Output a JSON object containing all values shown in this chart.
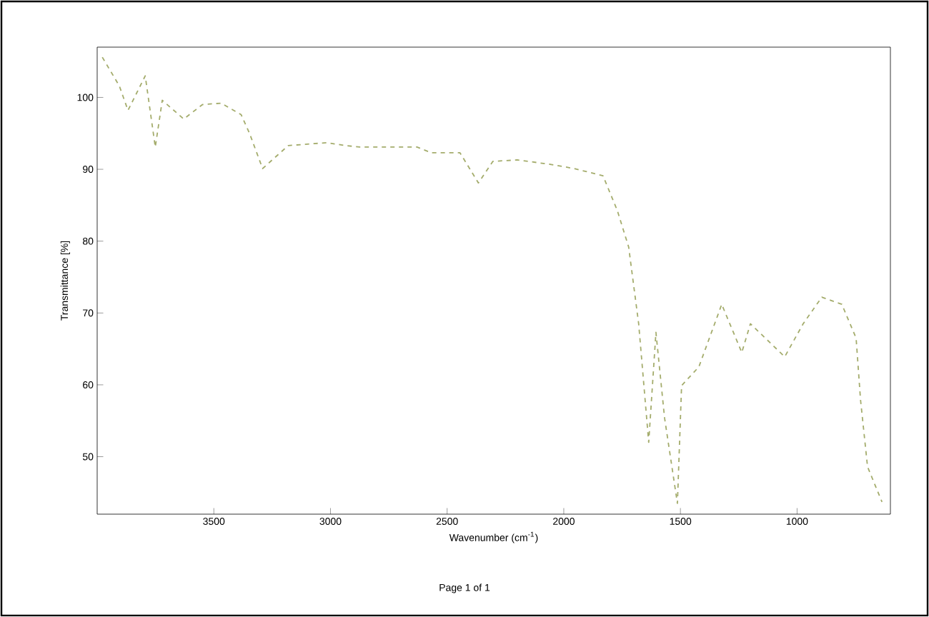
{
  "chart_data": {
    "type": "line",
    "xlabel": "Wavenumber (cm$^{-1}$)",
    "ylabel": "Transmittance [%]",
    "annotations": [
      "Page 1 of 1"
    ],
    "x": [
      3978,
      3905,
      3868,
      3794,
      3751,
      3721,
      3629,
      3549,
      3469,
      3383,
      3347,
      3291,
      3181,
      3016,
      2936,
      2875,
      2629,
      2568,
      2445,
      2366,
      2304,
      2200,
      2059,
      1955,
      1832,
      1771,
      1722,
      1679,
      1636,
      1605,
      1568,
      1513,
      1495,
      1421,
      1323,
      1237,
      1200,
      1053,
      974,
      894,
      808,
      747,
      728,
      698,
      636
    ],
    "series": [
      {
        "color": "#a4ac6c",
        "values": [
          105.6,
          101.6,
          98.2,
          103,
          93.1,
          99.6,
          97,
          99,
          99.2,
          97.6,
          95,
          90.1,
          93.3,
          93.7,
          93.3,
          93.1,
          93.1,
          92.3,
          92.3,
          88.1,
          91.1,
          91.3,
          90.7,
          90.1,
          89.1,
          84.3,
          79.2,
          68.5,
          52,
          67.3,
          55.4,
          43.5,
          59.9,
          62.5,
          71.2,
          64.5,
          68.5,
          63.9,
          68.5,
          72.2,
          71.2,
          66.5,
          57.9,
          48.6,
          43.7
        ]
      }
    ],
    "xlim": [
      4000,
      600
    ],
    "ylim": [
      42,
      107
    ],
    "xticks": [
      3500,
      3000,
      2500,
      2000,
      1500,
      1000
    ],
    "yticks": [
      100,
      90,
      80,
      70,
      60,
      50
    ],
    "line_style": "dashed",
    "marker": "none",
    "grid": false
  }
}
